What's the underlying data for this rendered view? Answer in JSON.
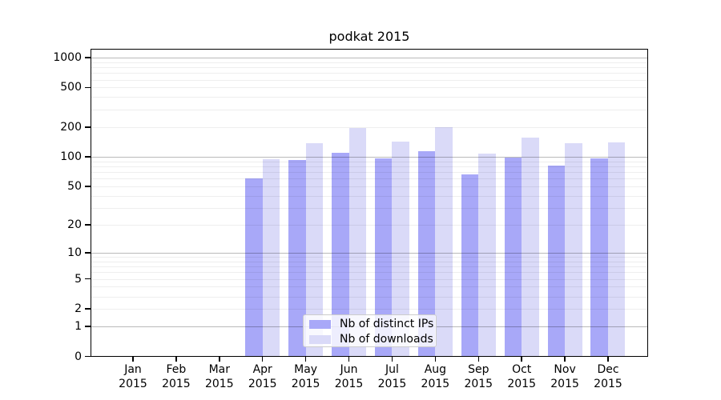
{
  "chart_data": {
    "type": "bar",
    "title": "podkat 2015",
    "categories": [
      "Jan 2015",
      "Feb 2015",
      "Mar 2015",
      "Apr 2015",
      "May 2015",
      "Jun 2015",
      "Jul 2015",
      "Aug 2015",
      "Sep 2015",
      "Oct 2015",
      "Nov 2015",
      "Dec 2015"
    ],
    "series": [
      {
        "name": "Nb of distinct IPs",
        "color": "#a8a8f8",
        "values": [
          0,
          0,
          0,
          60,
          92,
          110,
          97,
          115,
          66,
          98,
          81,
          97
        ]
      },
      {
        "name": "Nb of downloads",
        "color": "#dadaf8",
        "values": [
          0,
          0,
          0,
          95,
          138,
          195,
          142,
          201,
          108,
          155,
          137,
          139
        ]
      }
    ],
    "yscale": "log1p",
    "y_ticks": [
      0,
      1,
      2,
      5,
      10,
      20,
      50,
      100,
      200,
      500,
      1000
    ],
    "y_major_gridlines": [
      1,
      10,
      100,
      1000
    ],
    "ylim": [
      0,
      1220
    ],
    "xlabel": "",
    "ylabel": "",
    "grid": "major and minor horizontal gridlines drawn over bars",
    "legend_position": "bottom center inside plot"
  }
}
